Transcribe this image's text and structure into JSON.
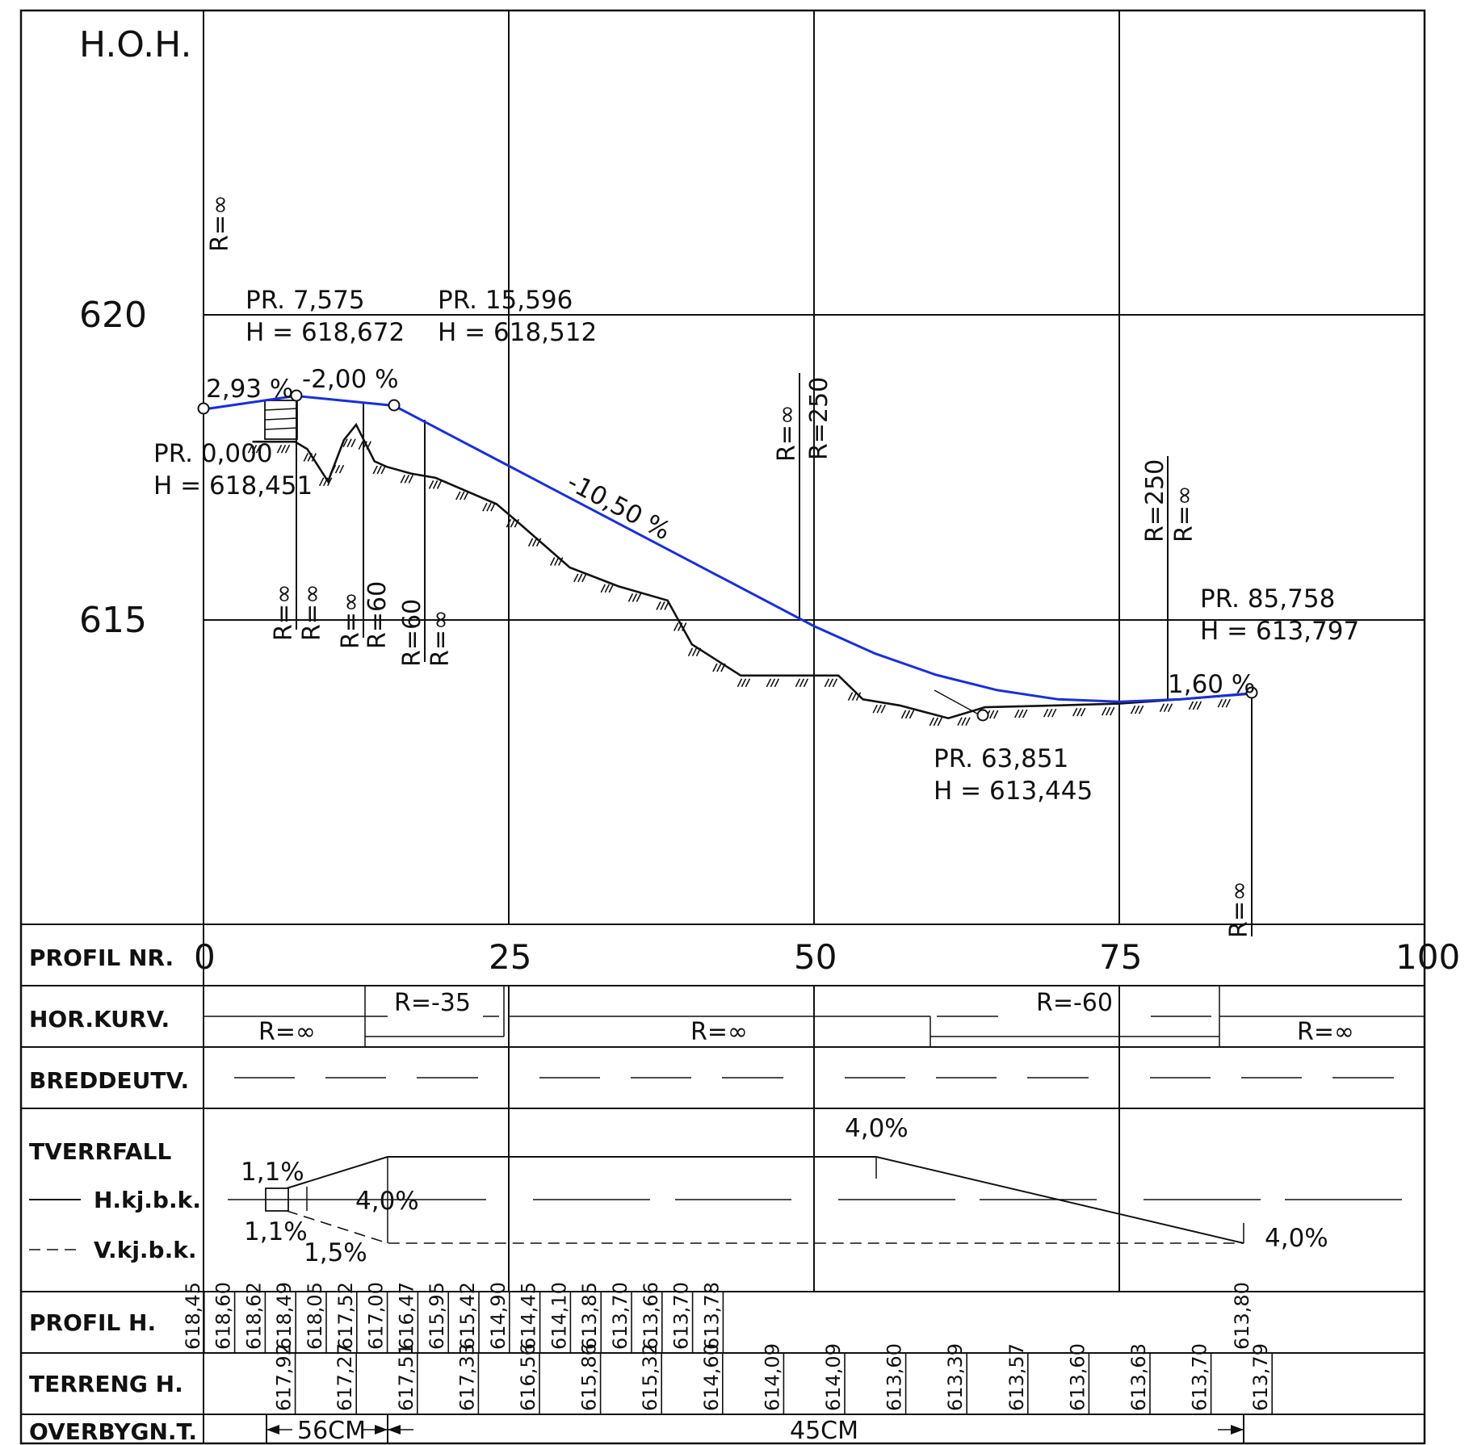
{
  "y_axis": {
    "title": "H.O.H.",
    "ticks": [
      {
        "value": 620,
        "label": "620"
      },
      {
        "value": 615,
        "label": "615"
      }
    ]
  },
  "profile_axis": {
    "row_label": "PROFIL NR.",
    "ticks": [
      {
        "value": 0,
        "label": "0"
      },
      {
        "value": 25,
        "label": "25"
      },
      {
        "value": 50,
        "label": "50"
      },
      {
        "value": 75,
        "label": "75"
      },
      {
        "value": 100,
        "label": "100"
      }
    ]
  },
  "colors": {
    "road_line": "#1a2fd8",
    "ink": "#111111"
  },
  "chart_data": {
    "type": "line",
    "xlim": [
      0,
      100
    ],
    "ylim": [
      605,
      625
    ],
    "series": [
      {
        "role": "road-profile",
        "points": [
          [
            0,
            618.451
          ],
          [
            7.575,
            618.672
          ],
          [
            15.596,
            618.512
          ],
          [
            20,
            618.05
          ],
          [
            30,
            617.0
          ],
          [
            40,
            615.95
          ],
          [
            50,
            614.9
          ],
          [
            55,
            614.45
          ],
          [
            60,
            614.1
          ],
          [
            65,
            613.85
          ],
          [
            70,
            613.7
          ],
          [
            75,
            613.66
          ],
          [
            80,
            613.7
          ],
          [
            85.758,
            613.797
          ]
        ]
      },
      {
        "role": "terrain",
        "points": [
          [
            4,
            617.92
          ],
          [
            7.5,
            617.92
          ],
          [
            8.5,
            617.8
          ],
          [
            10.2,
            617.27
          ],
          [
            11.5,
            617.95
          ],
          [
            12.5,
            618.2
          ],
          [
            14,
            617.6
          ],
          [
            15,
            617.51
          ],
          [
            17,
            617.4
          ],
          [
            19,
            617.33
          ],
          [
            24,
            616.9
          ],
          [
            26,
            616.56
          ],
          [
            30,
            615.86
          ],
          [
            34,
            615.55
          ],
          [
            38,
            615.32
          ],
          [
            40,
            614.6
          ],
          [
            44,
            614.09
          ],
          [
            50,
            614.09
          ],
          [
            52,
            614.09
          ],
          [
            54,
            613.7
          ],
          [
            57,
            613.6
          ],
          [
            61,
            613.39
          ],
          [
            64,
            613.57
          ],
          [
            70,
            613.6
          ],
          [
            75,
            613.63
          ],
          [
            80,
            613.7
          ],
          [
            85.758,
            613.79
          ]
        ]
      }
    ]
  },
  "annotations": {
    "pr0": {
      "line1": "PR. 0,000",
      "line2": "H = 618,451"
    },
    "pr7": {
      "line1": "PR. 7,575",
      "line2": "H = 618,672"
    },
    "pr15": {
      "line1": "PR. 15,596",
      "line2": "H = 618,512"
    },
    "pr63": {
      "line1": "PR. 63,851",
      "line2": "H = 613,445"
    },
    "pr85": {
      "line1": "PR. 85,758",
      "line2": "H = 613,797"
    },
    "grades": [
      "2,93 %",
      "-2,00 %",
      "-10,50 %",
      "1,60 %"
    ],
    "radius": {
      "r_inf": "R=∞",
      "r_250": "R=250",
      "r_60": "R=60"
    }
  },
  "bands": {
    "hor_kurv": {
      "label": "HOR.KURV.",
      "segments": [
        "R=∞",
        "R=-35",
        "R=∞",
        "R=-60",
        "R=∞"
      ]
    },
    "breddeutv": {
      "label": "BREDDEUTV."
    },
    "tverrfall": {
      "label": "TVERRFALL",
      "legend_h": "H.kj.b.k.",
      "legend_v": "V.kj.b.k.",
      "values": [
        "1,1%",
        "1,1%",
        "1,5%",
        "4,0%",
        "4,0%",
        "4,0%"
      ]
    },
    "profil_h": {
      "label": "PROFIL H.",
      "values": [
        "618,45",
        "618,60",
        "618,62",
        "618,49",
        "618,05",
        "617,52",
        "617,00",
        "616,47",
        "615,95",
        "615,42",
        "614,90",
        "614,45",
        "614,10",
        "613,85",
        "613,70",
        "613,66",
        "613,70",
        "613,78",
        "613,80"
      ]
    },
    "terreng_h": {
      "label": "TERRENG H.",
      "values": [
        "617,92",
        "617,27",
        "617,51",
        "617,33",
        "616,56",
        "615,86",
        "615,32",
        "614,60",
        "614,09",
        "614,09",
        "613,60",
        "613,39",
        "613,57",
        "613,60",
        "613,63",
        "613,70",
        "613,79"
      ]
    },
    "overbygn": {
      "label": "OVERBYGN.T.",
      "values": [
        "56CM",
        "45CM"
      ]
    }
  }
}
